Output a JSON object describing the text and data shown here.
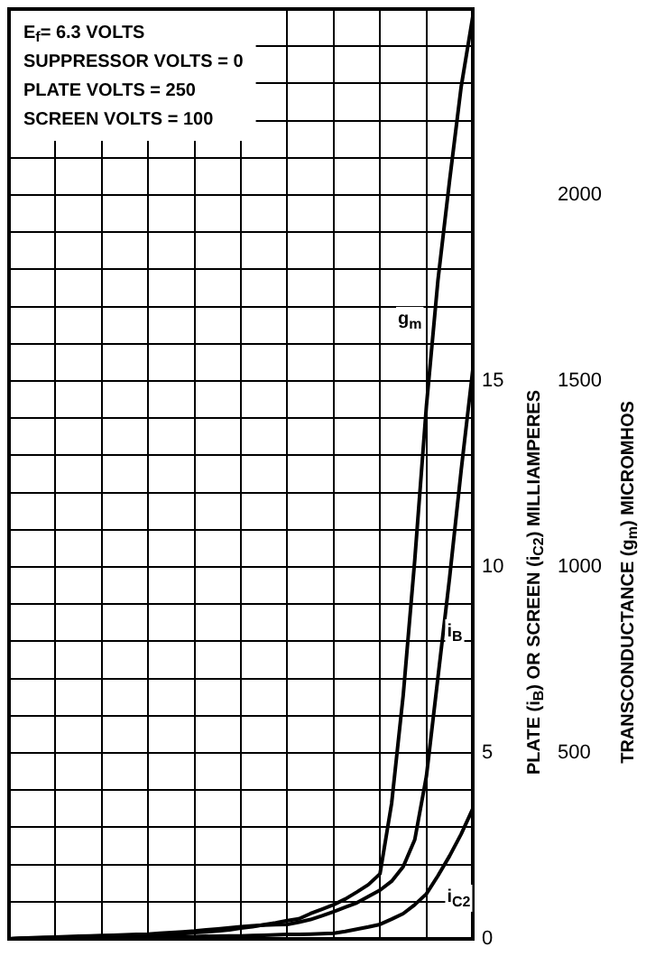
{
  "chart_data": {
    "type": "line",
    "categories": [
      null,
      null,
      null,
      null,
      null,
      null,
      null,
      null,
      null,
      null,
      null,
      null,
      null,
      null,
      null,
      null,
      null,
      null,
      null,
      null,
      null,
      null,
      null,
      null,
      null,
      null,
      null,
      null,
      null,
      null,
      null,
      null,
      null,
      null,
      null,
      null,
      null,
      null,
      null,
      null,
      null
    ],
    "series": [
      {
        "name": "g$_{m}$",
        "color": "#000000",
        "axis": "y2",
        "values": [
          0,
          1,
          1,
          2,
          2,
          3,
          3,
          4,
          5,
          6,
          7,
          8,
          10,
          11,
          12,
          14,
          17,
          19,
          21,
          24,
          29,
          33,
          38,
          43,
          49,
          54,
          68,
          80,
          92,
          107,
          126,
          146,
          175,
          364,
          655,
          1020,
          1432,
          1772,
          2039,
          2291,
          2480
        ]
      },
      {
        "name": "i$_{B}$",
        "color": "#000000",
        "values": [
          0,
          0.02,
          0.03,
          0.04,
          0.05,
          0.06,
          0.07,
          0.08,
          0.09,
          0.1,
          0.11,
          0.12,
          0.13,
          0.15,
          0.17,
          0.19,
          0.21,
          0.24,
          0.27,
          0.3,
          0.33,
          0.35,
          0.37,
          0.38,
          0.39,
          0.45,
          0.52,
          0.62,
          0.73,
          0.85,
          0.97,
          1.14,
          1.31,
          1.55,
          1.94,
          2.67,
          4.37,
          7.04,
          9.71,
          12.6,
          15.3
        ]
      },
      {
        "name": "i$_{C2}$",
        "color": "#000000",
        "values": [
          0,
          0.01,
          0.01,
          0.01,
          0.02,
          0.02,
          0.02,
          0.03,
          0.03,
          0.03,
          0.04,
          0.04,
          0.04,
          0.05,
          0.05,
          0.06,
          0.06,
          0.07,
          0.07,
          0.08,
          0.08,
          0.09,
          0.1,
          0.11,
          0.12,
          0.12,
          0.13,
          0.14,
          0.15,
          0.2,
          0.26,
          0.32,
          0.39,
          0.53,
          0.68,
          0.92,
          1.21,
          1.7,
          2.23,
          2.82,
          3.5
        ]
      }
    ],
    "ylabel": "PLATE (i$_{B}$) OR SCREEN (i$_{C2}$) MILLIAMPERES",
    "y2label": "TRANSCONDUCTANCE (g$_{m}$) MICROMHOS",
    "ylim": [
      0,
      25
    ],
    "yticks": [
      0,
      {
        "value": 1,
        "label": null
      },
      {
        "value": 2,
        "label": null
      },
      {
        "value": 3,
        "label": null
      },
      {
        "value": 4,
        "label": null
      },
      5,
      {
        "value": 6,
        "label": null
      },
      {
        "value": 7,
        "label": null
      },
      {
        "value": 8,
        "label": null
      },
      {
        "value": 9,
        "label": null
      },
      10,
      {
        "value": 11,
        "label": null
      },
      {
        "value": 12,
        "label": null
      },
      {
        "value": 13,
        "label": null
      },
      {
        "value": 14,
        "label": null
      },
      15,
      {
        "value": 16,
        "label": null
      },
      {
        "value": 17,
        "label": null
      },
      {
        "value": 18,
        "label": null
      },
      {
        "value": 19,
        "label": null
      },
      {
        "value": 20,
        "label": null
      },
      {
        "value": 21,
        "label": null
      },
      {
        "value": 22,
        "label": null
      },
      {
        "value": 23,
        "label": null
      },
      {
        "value": 24,
        "label": null
      },
      {
        "value": 25,
        "label": null
      }
    ],
    "y2lim": [
      0,
      2500
    ],
    "y2ticks": [
      500,
      1000,
      1500,
      2000
    ],
    "annotations": [
      "E$_{f}$= 6.3 VOLTS",
      "SUPPRESSOR VOLTS = 0",
      "PLATE VOLTS = 250",
      "SCREEN VOLTS = 100"
    ],
    "grid": true,
    "legend": false,
    "marker": "none",
    "line_style": "solid",
    "tick_labels": "y"
  }
}
